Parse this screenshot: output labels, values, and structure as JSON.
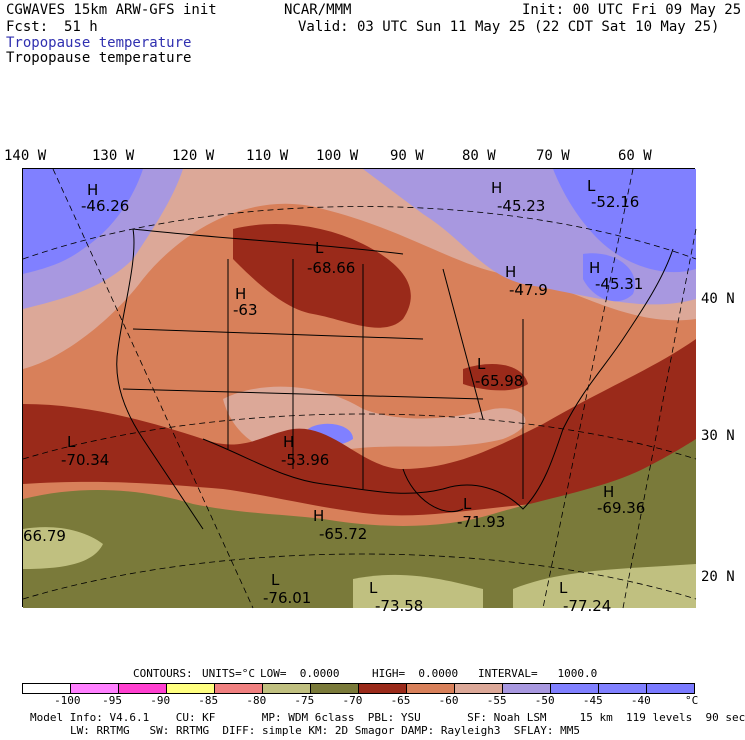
{
  "header": {
    "model": "CGWAVES 15km ARW-GFS init",
    "fcst_label": "Fcst:",
    "fcst_value": "51 h",
    "org": "NCAR/MMM",
    "init": "Init: 00 UTC Fri 09 May 25",
    "valid": "Valid: 03 UTC Sun 11 May 25 (22 CDT Sat 10 May 25)",
    "field_blue": "Tropopause temperature",
    "field_black": "Tropopause temperature"
  },
  "lon_labels": [
    "140 W",
    "130 W",
    "120 W",
    "110 W",
    "100 W",
    "90 W",
    "80 W",
    "70 W",
    "60 W"
  ],
  "lat_labels": [
    "40 N",
    "30 N",
    "20 N"
  ],
  "map_labels": [
    {
      "t": "H",
      "v": "-46.26"
    },
    {
      "t": "H",
      "v": "-45.23"
    },
    {
      "t": "L",
      "v": "-52.16"
    },
    {
      "t": "L",
      "v": "-68.66"
    },
    {
      "t": "H",
      "v": "-47.9"
    },
    {
      "t": "H",
      "v": "-45.31"
    },
    {
      "t": "H",
      "v": "-63"
    },
    {
      "t": "L",
      "v": "-65.98"
    },
    {
      "t": "L",
      "v": "-70.34"
    },
    {
      "t": "H",
      "v": "-53.96"
    },
    {
      "t": "L",
      "v": "-71.93"
    },
    {
      "t": "H",
      "v": "-69.36"
    },
    {
      "t": "H",
      "v": "-65.72"
    },
    {
      "t": "",
      "v": "66.79"
    },
    {
      "t": "L",
      "v": "-76.01"
    },
    {
      "t": "L",
      "v": "-73.58"
    },
    {
      "t": "L",
      "v": "-77.24"
    }
  ],
  "contours": {
    "label": "CONTOURS:",
    "units": "UNITS=°C",
    "low": "LOW=  0.0000",
    "high": "HIGH=  0.0000",
    "interval": "INTERVAL=   1000.0"
  },
  "colorbar": {
    "colors": [
      "#ffffff",
      "#ff80ff",
      "#ff40d0",
      "#ffff80",
      "#f08080",
      "#c0c080",
      "#7a7a3a",
      "#9a2a1a",
      "#d8805a",
      "#dca898",
      "#a898e0",
      "#8080ff",
      "#8080ff",
      "#7a7aff"
    ],
    "labels": [
      "-100",
      "-95",
      "-90",
      "-85",
      "-80",
      "-75",
      "-70",
      "-65",
      "-60",
      "-55",
      "-50",
      "-45",
      "-40",
      "°C"
    ]
  },
  "footer": {
    "line1": "Model Info: V4.6.1    CU: KF       MP: WDM 6class  PBL: YSU       SF: Noah LSM     15 km  119 levels  90 sec",
    "line2": "LW: RRTMG   SW: RRTMG  DIFF: simple KM: 2D Smagor DAMP: Rayleigh3  SFLAY: MM5"
  }
}
